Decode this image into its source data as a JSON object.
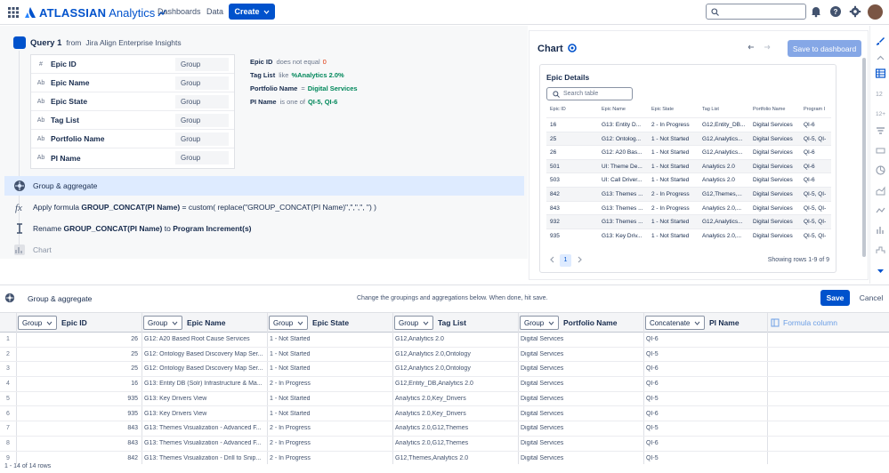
{
  "topnav": {
    "brand": "ATLASSIAN",
    "product": "Analytics",
    "links": [
      "Dashboards",
      "Data"
    ],
    "create_label": "Create"
  },
  "query": {
    "title": "Query 1",
    "from_label": "from",
    "source": "Jira Align Enterprise Insights",
    "columns": [
      {
        "type": "#",
        "name": "Epic ID",
        "agg": "Group"
      },
      {
        "type": "Ab",
        "name": "Epic Name",
        "agg": "Group"
      },
      {
        "type": "Ab",
        "name": "Epic State",
        "agg": "Group"
      },
      {
        "type": "Ab",
        "name": "Tag List",
        "agg": "Group"
      },
      {
        "type": "Ab",
        "name": "Portfolio Name",
        "agg": "Group"
      },
      {
        "type": "Ab",
        "name": "PI Name",
        "agg": "Group"
      }
    ],
    "filters": [
      {
        "field": "Epic ID",
        "op": "does not equal",
        "value": "0"
      },
      {
        "field": "Tag List",
        "op": "like",
        "value": "%Analytics 2.0%"
      },
      {
        "field": "Portfolio Name",
        "op": "=",
        "value": "Digital Services"
      },
      {
        "field": "PI Name",
        "op": "is one of",
        "value": "QI-5,  QI-6"
      }
    ]
  },
  "steps": {
    "group": "Group & aggregate",
    "formula_prefix": "Apply formula",
    "formula_bold": "GROUP_CONCAT(PI Name)",
    "formula_rest": " = custom( replace(\"GROUP_CONCAT(PI Name)\",\",\",\", \") )",
    "rename_prefix": "Rename",
    "rename_from": "GROUP_CONCAT(PI Name)",
    "rename_to_label": "to",
    "rename_to": "Program Increment(s)",
    "chart": "Chart"
  },
  "chart_panel": {
    "title": "Chart",
    "save_label": "Save to dashboard",
    "card_title": "Epic Details",
    "search_placeholder": "Search table",
    "headers": [
      "Epic ID",
      "Epic Name",
      "Epic State",
      "Tag List",
      "Portfolio Name",
      "Program I"
    ],
    "rows": [
      [
        "16",
        "G13: Entity D...",
        "2 - In Progress",
        "G12,Entity_DB...",
        "Digital Services",
        "QI-6"
      ],
      [
        "25",
        "G12: Ontolog...",
        "1 - Not Started",
        "G12,Analytics...",
        "Digital Services",
        "QI-5, QI-"
      ],
      [
        "26",
        "G12: A20 Bas...",
        "1 - Not Started",
        "G12,Analytics...",
        "Digital Services",
        "QI-6"
      ],
      [
        "501",
        "UI: Theme De...",
        "1 - Not Started",
        "Analytics 2.0",
        "Digital Services",
        "QI-6"
      ],
      [
        "503",
        "UI: Call Driver...",
        "1 - Not Started",
        "Analytics 2.0",
        "Digital Services",
        "QI-6"
      ],
      [
        "842",
        "G13: Themes ...",
        "2 - In Progress",
        "G12,Themes,...",
        "Digital Services",
        "QI-5, QI-"
      ],
      [
        "843",
        "G13: Themes ...",
        "2 - In Progress",
        "Analytics 2.0,...",
        "Digital Services",
        "QI-5, QI-"
      ],
      [
        "932",
        "G13: Themes ...",
        "1 - Not Started",
        "G12,Analytics...",
        "Digital Services",
        "QI-5, QI-"
      ],
      [
        "935",
        "G13: Key Driv...",
        "1 - Not Started",
        "Analytics 2.0,...",
        "Digital Services",
        "QI-5, QI-"
      ]
    ],
    "current_page": "1",
    "pager_text": "Showing rows 1-9 of 9"
  },
  "group_bar": {
    "title": "Group & aggregate",
    "hint": "Change the groupings and aggregations below. When done, hit save.",
    "save_label": "Save",
    "cancel_label": "Cancel"
  },
  "grid": {
    "headers": [
      {
        "agg": "Group",
        "name": "Epic ID"
      },
      {
        "agg": "Group",
        "name": "Epic Name"
      },
      {
        "agg": "Group",
        "name": "Epic State"
      },
      {
        "agg": "Group",
        "name": "Tag List"
      },
      {
        "agg": "Group",
        "name": "Portfolio Name"
      },
      {
        "agg": "Concatenate",
        "name": "PI Name"
      }
    ],
    "formula_col": "Formula column",
    "rows": [
      [
        "1",
        "26",
        "G12: A20 Based Root Cause Services",
        "1 - Not Started",
        "G12,Analytics 2.0",
        "Digital Services",
        "QI-6"
      ],
      [
        "2",
        "25",
        "G12: Ontology Based Discovery Map Ser...",
        "1 - Not Started",
        "G12,Analytics 2.0,Ontology",
        "Digital Services",
        "QI-5"
      ],
      [
        "3",
        "25",
        "G12: Ontology Based Discovery Map Ser...",
        "1 - Not Started",
        "G12,Analytics 2.0,Ontology",
        "Digital Services",
        "QI-6"
      ],
      [
        "4",
        "16",
        "G13: Entity DB (Solr) Infrastructure & Ma...",
        "2 - In Progress",
        "G12,Entity_DB,Analytics 2.0",
        "Digital Services",
        "QI-6"
      ],
      [
        "5",
        "935",
        "G13: Key Drivers View",
        "1 - Not Started",
        "Analytics 2.0,Key_Drivers",
        "Digital Services",
        "QI-5"
      ],
      [
        "6",
        "935",
        "G13: Key Drivers View",
        "1 - Not Started",
        "Analytics 2.0,Key_Drivers",
        "Digital Services",
        "QI-6"
      ],
      [
        "7",
        "843",
        "G13: Themes Visualization - Advanced F...",
        "2 - In Progress",
        "Analytics 2.0,G12,Themes",
        "Digital Services",
        "QI-5"
      ],
      [
        "8",
        "843",
        "G13: Themes Visualization - Advanced F...",
        "2 - In Progress",
        "Analytics 2.0,G12,Themes",
        "Digital Services",
        "QI-6"
      ],
      [
        "9",
        "842",
        "G13: Themes Visualization - Drill to Snip...",
        "2 - In Progress",
        "G12,Themes,Analytics 2.0",
        "Digital Services",
        "QI-5"
      ]
    ],
    "footer": "1 - 14 of 14 rows"
  }
}
